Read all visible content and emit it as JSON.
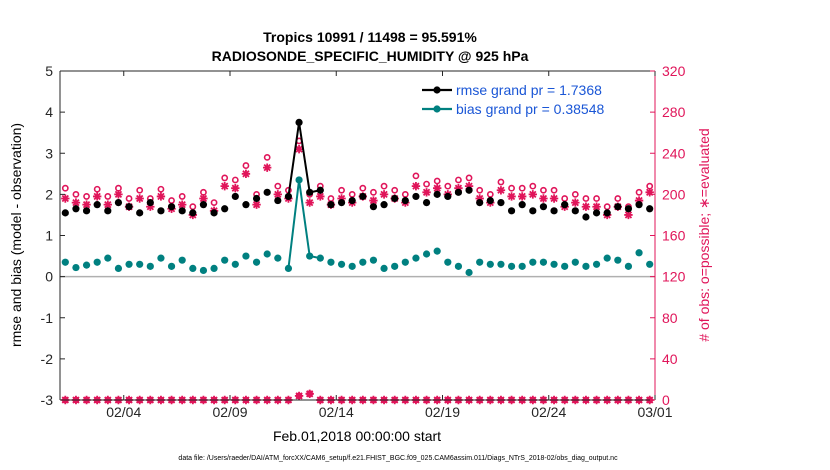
{
  "chart_data": {
    "type": "line",
    "title": "Tropics 10991 / 11498 = 95.591%",
    "subtitle": "RADIOSONDE_SPECIFIC_HUMIDITY @ 925 hPa",
    "xlabel": "Feb.01,2018 00:00:00 start",
    "ylabel": "rmse and bias (model - observation)",
    "ylabel_right": "# of obs: o=possible; ∗=evaluated",
    "footnote": "data file: /Users/raeder/DAI/ATM_forcXX/CAM6_setup/f.e21.FHIST_BGC.f09_025.CAM6assim.011/Diags_NTrS_2018-02/obs_diag_output.nc",
    "xlim": [
      0,
      28
    ],
    "ylim": [
      -3,
      5
    ],
    "ylim_right": [
      0,
      320
    ],
    "x_ticks": [
      3,
      8,
      13,
      18,
      23,
      28
    ],
    "x_tick_labels": [
      "02/04",
      "02/09",
      "02/14",
      "02/19",
      "02/24",
      "03/01"
    ],
    "y_ticks": [
      -3,
      -2,
      -1,
      0,
      1,
      2,
      3,
      4,
      5
    ],
    "y_tick_labels": [
      "-3",
      "-2",
      "-1",
      "0",
      "1",
      "2",
      "3",
      "4",
      "5"
    ],
    "y_right_ticks": [
      0,
      40,
      80,
      120,
      160,
      200,
      240,
      280,
      320
    ],
    "y_right_tick_labels": [
      "0",
      "40",
      "80",
      "120",
      "160",
      "200",
      "240",
      "280",
      "320"
    ],
    "x": [
      0.25,
      0.75,
      1.25,
      1.75,
      2.25,
      2.75,
      3.25,
      3.75,
      4.25,
      4.75,
      5.25,
      5.75,
      6.25,
      6.75,
      7.25,
      7.75,
      8.25,
      8.75,
      9.25,
      9.75,
      10.25,
      10.75,
      11.25,
      11.75,
      12.25,
      12.75,
      13.25,
      13.75,
      14.25,
      14.75,
      15.25,
      15.75,
      16.25,
      16.75,
      17.25,
      17.75,
      18.25,
      18.75,
      19.25,
      19.75,
      20.25,
      20.75,
      21.25,
      21.75,
      22.25,
      22.75,
      23.25,
      23.75,
      24.25,
      24.75,
      25.25,
      25.75,
      26.25,
      26.75,
      27.25,
      27.75
    ],
    "series": [
      {
        "name": "rmse",
        "legend": "rmse grand pr = 1.7368",
        "color": "#000000",
        "values": [
          1.55,
          1.65,
          1.6,
          1.75,
          1.6,
          1.8,
          1.7,
          1.55,
          1.8,
          1.6,
          1.7,
          1.6,
          1.55,
          1.75,
          1.55,
          1.65,
          1.95,
          1.75,
          1.9,
          2.05,
          1.85,
          1.95,
          3.75,
          2.05,
          2.1,
          1.75,
          1.8,
          1.85,
          1.95,
          1.7,
          1.75,
          1.9,
          1.85,
          1.95,
          1.8,
          2.0,
          1.95,
          2.05,
          2.1,
          1.8,
          1.85,
          1.8,
          1.6,
          1.75,
          1.6,
          1.7,
          1.6,
          1.75,
          1.6,
          1.45,
          1.55,
          1.55,
          1.7,
          1.65,
          1.75,
          1.65
        ]
      },
      {
        "name": "bias",
        "legend": "bias grand pr = 0.38548",
        "color": "#008080",
        "values": [
          0.35,
          0.22,
          0.28,
          0.35,
          0.45,
          0.2,
          0.3,
          0.3,
          0.25,
          0.45,
          0.25,
          0.4,
          0.2,
          0.15,
          0.2,
          0.4,
          0.3,
          0.5,
          0.35,
          0.55,
          0.45,
          0.2,
          2.35,
          0.5,
          0.45,
          0.35,
          0.3,
          0.25,
          0.35,
          0.4,
          0.2,
          0.25,
          0.35,
          0.45,
          0.55,
          0.62,
          0.35,
          0.25,
          0.1,
          0.35,
          0.3,
          0.3,
          0.25,
          0.25,
          0.35,
          0.35,
          0.3,
          0.25,
          0.35,
          0.25,
          0.3,
          0.45,
          0.4,
          0.25,
          0.58,
          0.3
        ]
      }
    ],
    "obs_possible": [
      206,
      200,
      198,
      205,
      198,
      206,
      196,
      204,
      196,
      205,
      194,
      198,
      188,
      202,
      192,
      216,
      214,
      228,
      200,
      236,
      208,
      204,
      252,
      200,
      208,
      196,
      204,
      200,
      206,
      202,
      208,
      204,
      200,
      218,
      210,
      213,
      208,
      214,
      216,
      204,
      200,
      212,
      206,
      206,
      208,
      204,
      204,
      196,
      200,
      196,
      196,
      188,
      196,
      188,
      202,
      208
    ],
    "obs_evaluated": [
      196,
      192,
      190,
      198,
      190,
      200,
      188,
      196,
      188,
      198,
      186,
      190,
      180,
      196,
      184,
      208,
      206,
      220,
      190,
      226,
      200,
      196,
      244,
      192,
      198,
      190,
      196,
      192,
      198,
      194,
      200,
      196,
      192,
      208,
      202,
      206,
      200,
      206,
      208,
      196,
      192,
      204,
      198,
      198,
      200,
      196,
      196,
      188,
      192,
      188,
      188,
      180,
      188,
      180,
      194,
      202
    ],
    "obs_zero_row_possible": [
      0,
      0,
      0,
      0,
      0,
      0,
      0,
      0,
      0,
      0,
      0,
      0,
      0,
      0,
      0,
      0,
      0,
      0,
      0,
      0,
      0,
      0,
      4,
      6,
      0,
      0,
      0,
      0,
      0,
      0,
      0,
      0,
      0,
      0,
      0,
      0,
      0,
      0,
      0,
      0,
      0,
      0,
      0,
      0,
      0,
      0,
      0,
      0,
      0,
      0,
      0,
      0,
      0,
      0,
      0,
      0
    ],
    "obs_color": "#e0155a",
    "baseline_color": "#b0b0b0"
  }
}
